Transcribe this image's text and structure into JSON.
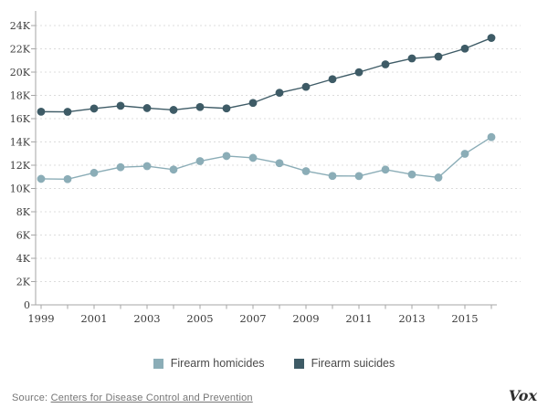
{
  "chart_data": {
    "type": "line",
    "title": "",
    "x": [
      1999,
      2000,
      2001,
      2002,
      2003,
      2004,
      2005,
      2006,
      2007,
      2008,
      2009,
      2010,
      2011,
      2012,
      2013,
      2014,
      2015,
      2016
    ],
    "series": [
      {
        "name": "Firearm homicides",
        "color": "#8badb7",
        "values": [
          10828,
          10801,
          11348,
          11829,
          11920,
          11624,
          12352,
          12791,
          12632,
          12179,
          11493,
          11078,
          11068,
          11622,
          11208,
          10945,
          12979,
          14415
        ]
      },
      {
        "name": "Firearm suicides",
        "color": "#3e5b66",
        "values": [
          16599,
          16586,
          16869,
          17108,
          16907,
          16750,
          17002,
          16883,
          17352,
          18223,
          18735,
          19392,
          19990,
          20666,
          21175,
          21334,
          22018,
          22938
        ]
      }
    ],
    "ylim": [
      0,
      24000
    ],
    "y_tick_step": 2000,
    "y_tick_labels": [
      "0",
      "2K",
      "4K",
      "6K",
      "8K",
      "10K",
      "12K",
      "14K",
      "16K",
      "18K",
      "20K",
      "22K",
      "24K"
    ],
    "x_tick_labels": [
      "1999",
      "2001",
      "2003",
      "2005",
      "2007",
      "2009",
      "2011",
      "2013",
      "2015"
    ],
    "grid": "horizontal-dashed",
    "legend_position": "bottom-center"
  },
  "legend": {
    "items": [
      {
        "label": "Firearm homicides",
        "color": "#8badb7"
      },
      {
        "label": "Firearm suicides",
        "color": "#3e5b66"
      }
    ]
  },
  "footer": {
    "source_prefix": "Source:",
    "source_link": "Centers for Disease Control and Prevention",
    "logo": "Vox"
  }
}
